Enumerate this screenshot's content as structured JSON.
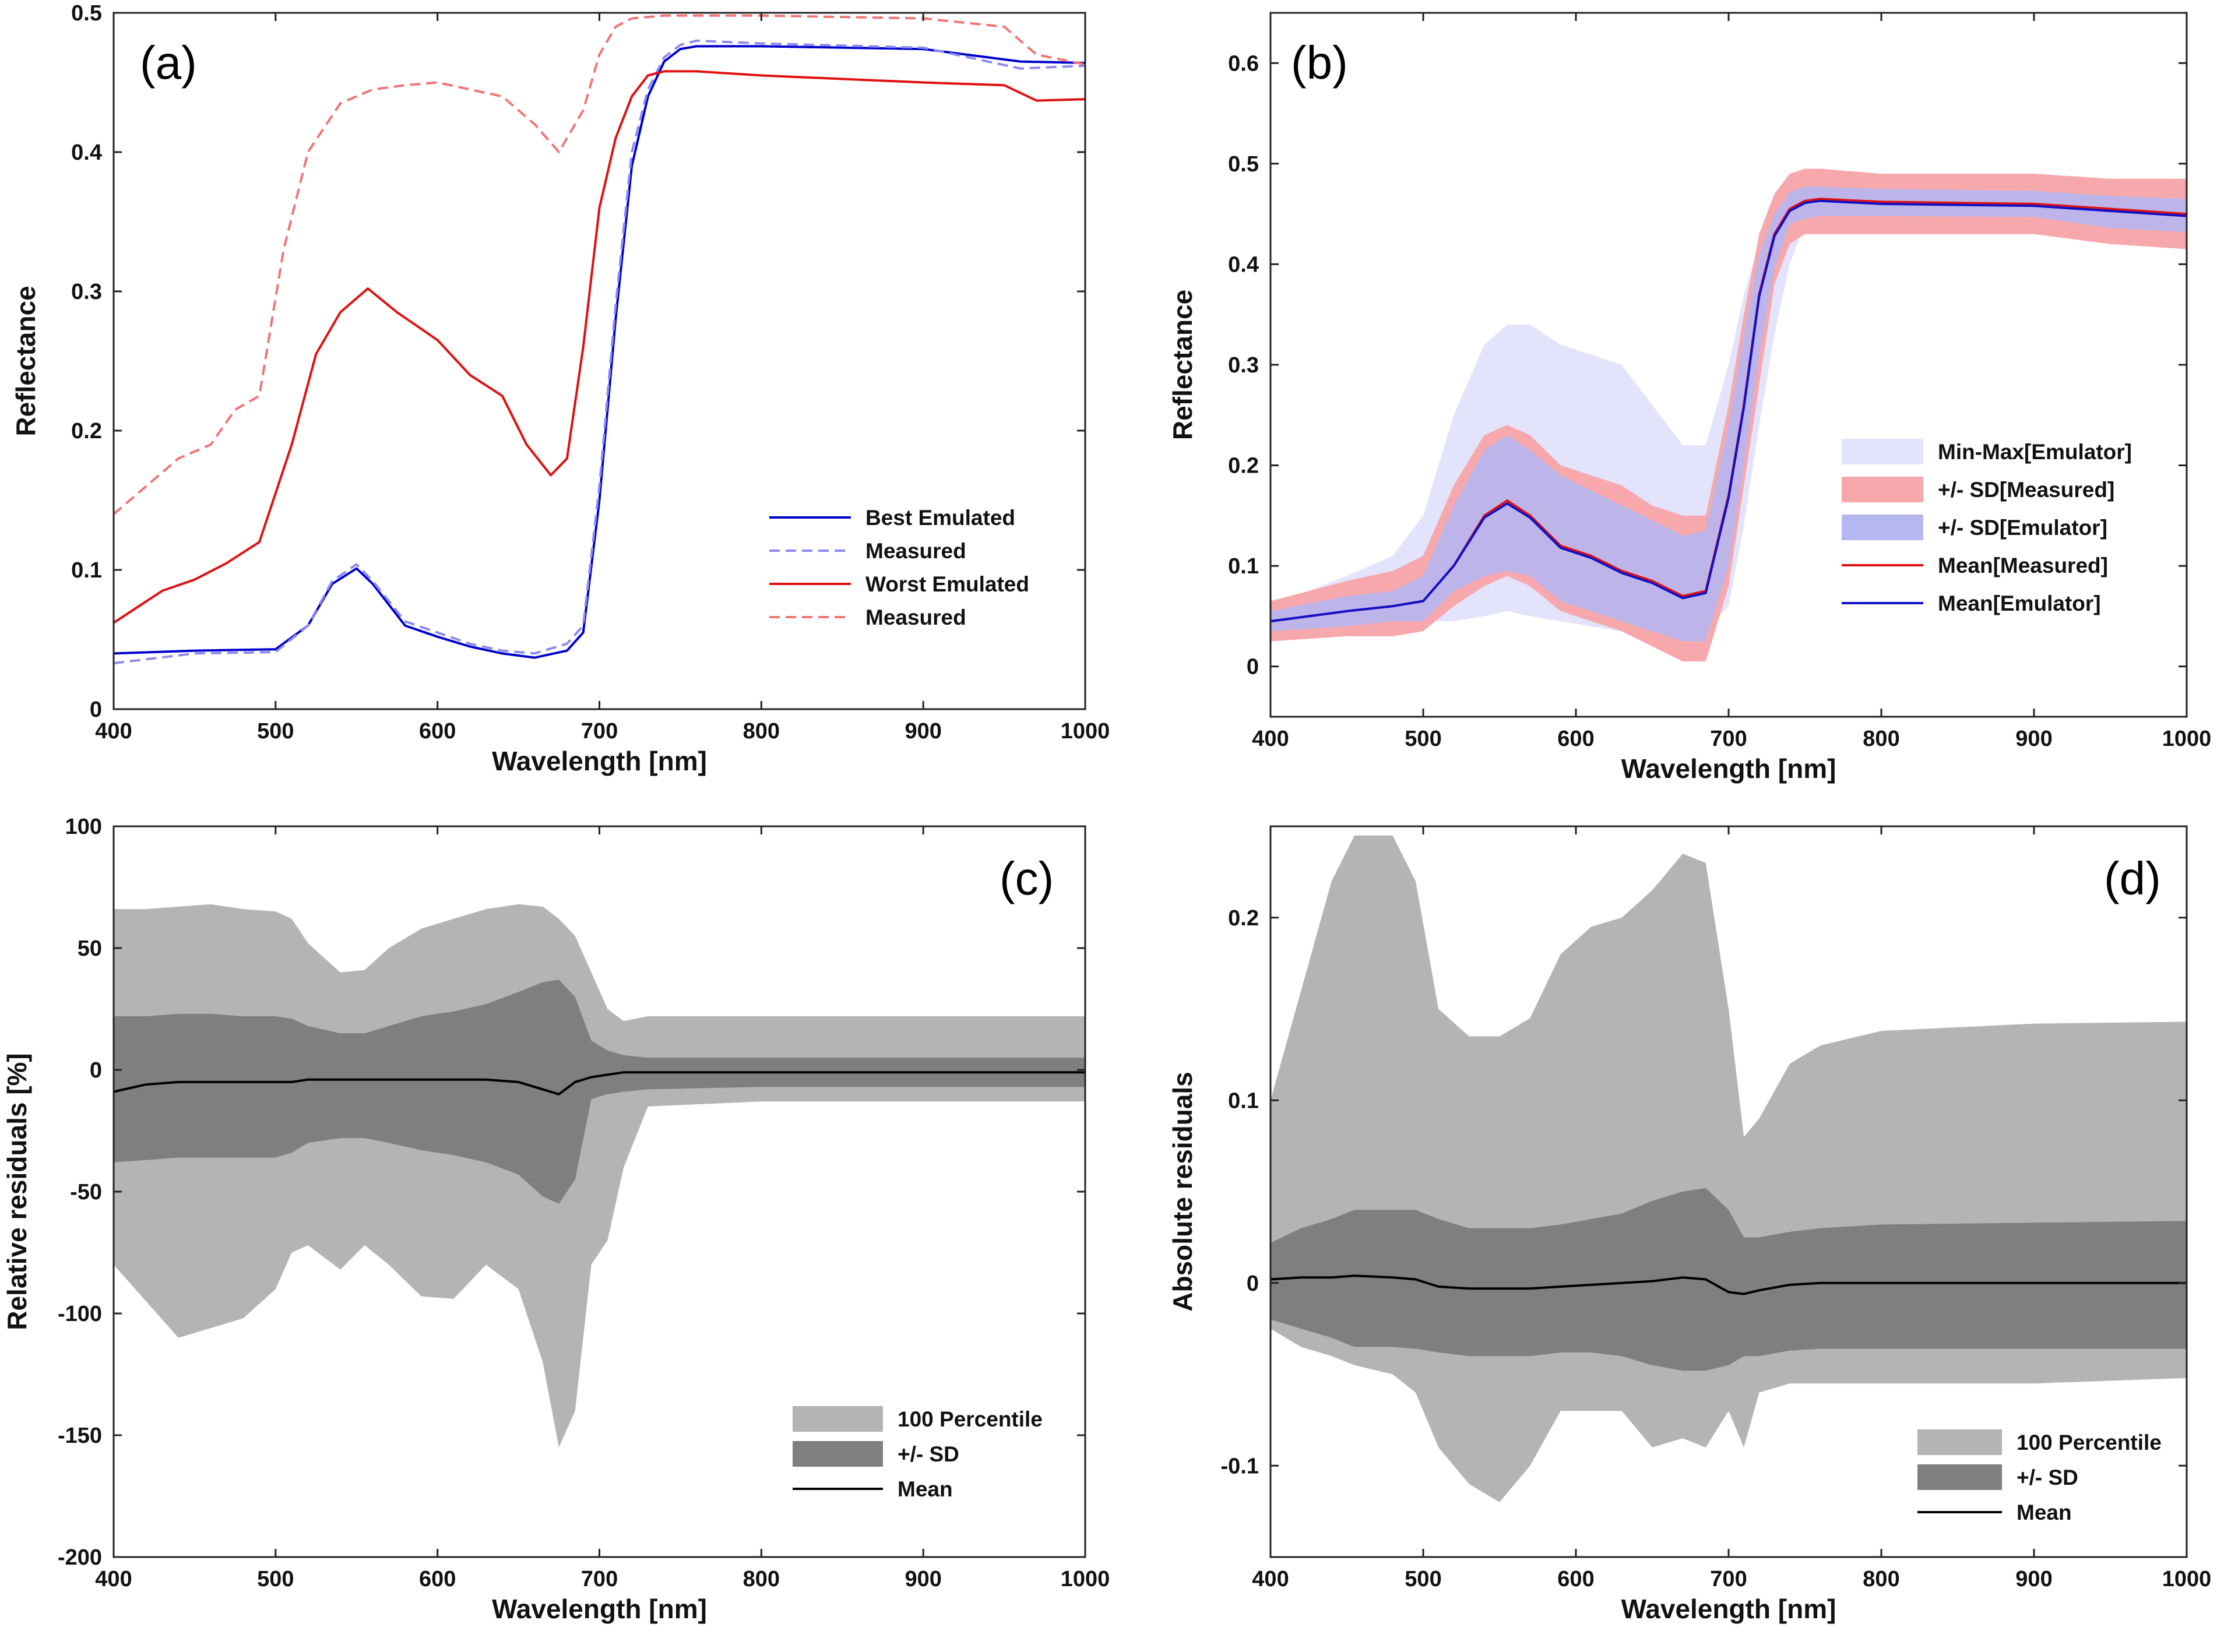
{
  "chart_data": [
    {
      "panel": "a",
      "type": "line",
      "panel_label": "(a)",
      "xlabel": "Wavelength [nm]",
      "ylabel": "Reflectance",
      "xlim": [
        400,
        1000
      ],
      "ylim": [
        0,
        0.5
      ],
      "xticks": [
        400,
        500,
        600,
        700,
        800,
        900,
        1000
      ],
      "yticks": [
        0,
        0.1,
        0.2,
        0.3,
        0.4,
        0.5
      ],
      "ytick_labels": [
        "0",
        "0.1",
        "0.2",
        "0.3",
        "0.4",
        "0.5"
      ],
      "legend_position": "lower-right",
      "series": [
        {
          "name": "Best Emulated",
          "color": "#0000cc",
          "style": "solid",
          "x": [
            400,
            450,
            500,
            520,
            535,
            550,
            560,
            580,
            600,
            620,
            640,
            660,
            680,
            690,
            700,
            710,
            720,
            730,
            740,
            750,
            760,
            800,
            900,
            960,
            1000
          ],
          "y": [
            0.04,
            0.042,
            0.043,
            0.06,
            0.09,
            0.101,
            0.09,
            0.06,
            0.052,
            0.045,
            0.04,
            0.037,
            0.042,
            0.055,
            0.15,
            0.28,
            0.39,
            0.44,
            0.465,
            0.474,
            0.476,
            0.476,
            0.474,
            0.465,
            0.464
          ]
        },
        {
          "name": "Measured",
          "color": "#8a8af0",
          "style": "dashed",
          "x": [
            400,
            450,
            500,
            520,
            535,
            550,
            560,
            580,
            600,
            620,
            640,
            660,
            680,
            690,
            700,
            710,
            720,
            730,
            740,
            750,
            760,
            800,
            900,
            960,
            1000
          ],
          "y": [
            0.033,
            0.04,
            0.041,
            0.06,
            0.092,
            0.104,
            0.092,
            0.063,
            0.055,
            0.047,
            0.042,
            0.04,
            0.047,
            0.06,
            0.16,
            0.29,
            0.4,
            0.445,
            0.468,
            0.477,
            0.48,
            0.478,
            0.475,
            0.46,
            0.462
          ]
        },
        {
          "name": "Worst Emulated",
          "color": "#e01010",
          "style": "solid",
          "x": [
            400,
            430,
            450,
            470,
            490,
            510,
            525,
            540,
            557,
            575,
            600,
            620,
            640,
            655,
            670,
            680,
            690,
            700,
            710,
            720,
            730,
            740,
            760,
            800,
            900,
            950,
            970,
            1000
          ],
          "y": [
            0.062,
            0.085,
            0.093,
            0.105,
            0.12,
            0.19,
            0.255,
            0.285,
            0.302,
            0.285,
            0.265,
            0.24,
            0.225,
            0.19,
            0.168,
            0.18,
            0.26,
            0.36,
            0.41,
            0.44,
            0.455,
            0.458,
            0.458,
            0.455,
            0.45,
            0.448,
            0.437,
            0.438
          ]
        },
        {
          "name": "Measured",
          "color": "#f07575",
          "style": "dashed",
          "x": [
            400,
            420,
            440,
            460,
            475,
            490,
            505,
            520,
            540,
            560,
            580,
            600,
            620,
            640,
            660,
            675,
            690,
            700,
            710,
            720,
            740,
            800,
            900,
            950,
            970,
            1000
          ],
          "y": [
            0.14,
            0.16,
            0.18,
            0.19,
            0.215,
            0.225,
            0.33,
            0.4,
            0.435,
            0.445,
            0.448,
            0.45,
            0.445,
            0.44,
            0.42,
            0.4,
            0.43,
            0.47,
            0.49,
            0.496,
            0.498,
            0.498,
            0.496,
            0.49,
            0.47,
            0.463
          ]
        }
      ]
    },
    {
      "panel": "b",
      "type": "area",
      "panel_label": "(b)",
      "xlabel": "Wavelength [nm]",
      "ylabel": "Reflectance",
      "xlim": [
        400,
        1000
      ],
      "ylim": [
        -0.05,
        0.65
      ],
      "xticks": [
        400,
        500,
        600,
        700,
        800,
        900,
        1000
      ],
      "yticks": [
        0,
        0.1,
        0.2,
        0.3,
        0.4,
        0.5,
        0.6
      ],
      "ytick_labels": [
        "0",
        "0.1",
        "0.2",
        "0.3",
        "0.4",
        "0.5",
        "0.6"
      ],
      "legend_position": "lower-right",
      "x": [
        400,
        450,
        480,
        500,
        520,
        540,
        555,
        570,
        590,
        610,
        630,
        650,
        670,
        685,
        700,
        710,
        720,
        730,
        740,
        750,
        760,
        800,
        900,
        950,
        1000
      ],
      "bands": [
        {
          "name": "Min-Max[Emulator]",
          "color": "#e3e3fb",
          "upper": [
            0.06,
            0.09,
            0.11,
            0.15,
            0.25,
            0.32,
            0.34,
            0.34,
            0.32,
            0.31,
            0.3,
            0.26,
            0.22,
            0.22,
            0.3,
            0.37,
            0.42,
            0.45,
            0.46,
            0.465,
            0.468,
            0.466,
            0.462,
            0.46,
            0.455
          ],
          "lower": [
            0.04,
            0.045,
            0.045,
            0.045,
            0.045,
            0.05,
            0.055,
            0.05,
            0.045,
            0.04,
            0.035,
            0.035,
            0.03,
            0.035,
            0.06,
            0.14,
            0.24,
            0.33,
            0.4,
            0.44,
            0.455,
            0.455,
            0.455,
            0.45,
            0.44
          ]
        },
        {
          "name": "+/- SD[Measured]",
          "color": "#f7a8ac",
          "upper": [
            0.065,
            0.085,
            0.095,
            0.11,
            0.18,
            0.23,
            0.24,
            0.23,
            0.2,
            0.19,
            0.18,
            0.16,
            0.15,
            0.15,
            0.26,
            0.35,
            0.43,
            0.47,
            0.49,
            0.495,
            0.495,
            0.49,
            0.49,
            0.485,
            0.485
          ]
        },
        {
          "name": "+/- SD[Emulator]",
          "color": "#b6b6f0",
          "upper": [
            0.055,
            0.07,
            0.075,
            0.09,
            0.16,
            0.215,
            0.23,
            0.215,
            0.19,
            0.175,
            0.16,
            0.145,
            0.13,
            0.135,
            0.24,
            0.33,
            0.41,
            0.45,
            0.472,
            0.477,
            0.477,
            0.475,
            0.473,
            0.468,
            0.465
          ],
          "lower": [
            0.035,
            0.04,
            0.045,
            0.045,
            0.075,
            0.09,
            0.095,
            0.09,
            0.065,
            0.055,
            0.045,
            0.035,
            0.025,
            0.025,
            0.1,
            0.2,
            0.31,
            0.395,
            0.44,
            0.445,
            0.448,
            0.448,
            0.447,
            0.436,
            0.432
          ]
        },
        {
          "name": "+/- SD[Measured] lower",
          "color": "#f7a8ac",
          "lower": [
            0.025,
            0.03,
            0.03,
            0.035,
            0.06,
            0.08,
            0.09,
            0.08,
            0.055,
            0.045,
            0.035,
            0.02,
            0.005,
            0.005,
            0.08,
            0.18,
            0.28,
            0.38,
            0.42,
            0.43,
            0.43,
            0.43,
            0.43,
            0.42,
            0.415
          ]
        }
      ],
      "series": [
        {
          "name": "Mean[Measured]",
          "color": "#e01010",
          "y": [
            0.045,
            0.055,
            0.06,
            0.065,
            0.1,
            0.15,
            0.165,
            0.15,
            0.12,
            0.11,
            0.095,
            0.085,
            0.07,
            0.075,
            0.17,
            0.26,
            0.37,
            0.43,
            0.455,
            0.463,
            0.465,
            0.462,
            0.46,
            0.455,
            0.45
          ]
        },
        {
          "name": "Mean[Emulator]",
          "color": "#1010c8",
          "y": [
            0.045,
            0.055,
            0.06,
            0.065,
            0.1,
            0.148,
            0.162,
            0.148,
            0.118,
            0.108,
            0.093,
            0.083,
            0.068,
            0.073,
            0.168,
            0.258,
            0.368,
            0.428,
            0.453,
            0.461,
            0.463,
            0.46,
            0.458,
            0.453,
            0.448
          ]
        }
      ]
    },
    {
      "panel": "c",
      "type": "area",
      "panel_label": "(c)",
      "xlabel": "Wavelength [nm]",
      "ylabel": "Relative residuals [%]",
      "xlim": [
        400,
        1000
      ],
      "ylim": [
        -200,
        100
      ],
      "xticks": [
        400,
        500,
        600,
        700,
        800,
        900,
        1000
      ],
      "yticks": [
        -200,
        -150,
        -100,
        -50,
        0,
        50,
        100
      ],
      "ytick_labels": [
        "-200",
        "-150",
        "-100",
        "-50",
        "0",
        "50",
        "100"
      ],
      "legend_position": "lower-right",
      "x": [
        400,
        420,
        440,
        460,
        480,
        500,
        510,
        520,
        540,
        555,
        570,
        590,
        610,
        630,
        650,
        665,
        675,
        685,
        695,
        705,
        715,
        730,
        800,
        900,
        1000
      ],
      "bands": [
        {
          "name": "100 Percentile",
          "color": "#b4b4b4",
          "upper": [
            66,
            66,
            67,
            68,
            66,
            65,
            62,
            52,
            40,
            41,
            50,
            58,
            62,
            66,
            68,
            67,
            62,
            55,
            40,
            25,
            20,
            22,
            22,
            22,
            22
          ],
          "lower": [
            -80,
            -95,
            -110,
            -106,
            -102,
            -90,
            -75,
            -72,
            -82,
            -72,
            -80,
            -93,
            -94,
            -80,
            -90,
            -120,
            -155,
            -140,
            -80,
            -70,
            -40,
            -15,
            -13,
            -13,
            -13
          ]
        },
        {
          "name": "+/- SD",
          "color": "#7f7f7f",
          "upper": [
            22,
            22,
            23,
            23,
            22,
            22,
            21,
            18,
            15,
            15,
            18,
            22,
            24,
            27,
            32,
            36,
            37,
            30,
            12,
            8,
            6,
            5,
            5,
            5,
            5
          ],
          "lower": [
            -38,
            -37,
            -36,
            -36,
            -36,
            -36,
            -34,
            -30,
            -28,
            -28,
            -30,
            -33,
            -35,
            -38,
            -43,
            -52,
            -55,
            -45,
            -12,
            -10,
            -9,
            -8,
            -7,
            -7,
            -7
          ]
        }
      ],
      "series": [
        {
          "name": "Mean",
          "color": "#000000",
          "y": [
            -9,
            -6,
            -5,
            -5,
            -5,
            -5,
            -5,
            -4,
            -4,
            -4,
            -4,
            -4,
            -4,
            -4,
            -5,
            -8,
            -10,
            -5,
            -3,
            -2,
            -1,
            -1,
            -1,
            -1,
            -1
          ]
        }
      ]
    },
    {
      "panel": "d",
      "type": "area",
      "panel_label": "(d)",
      "xlabel": "Wavelength [nm]",
      "ylabel": "Absolute residuals",
      "xlim": [
        400,
        1000
      ],
      "ylim": [
        -0.15,
        0.25
      ],
      "xticks": [
        400,
        500,
        600,
        700,
        800,
        900,
        1000
      ],
      "yticks": [
        -0.1,
        0,
        0.1,
        0.2
      ],
      "ytick_labels": [
        "-0.1",
        "0",
        "0.1",
        "0.2"
      ],
      "legend_position": "lower-right",
      "x": [
        400,
        420,
        440,
        455,
        480,
        495,
        510,
        530,
        550,
        570,
        590,
        610,
        630,
        650,
        670,
        685,
        700,
        710,
        720,
        740,
        760,
        800,
        900,
        1000
      ],
      "bands": [
        {
          "name": "100 Percentile",
          "color": "#b4b4b4",
          "upper": [
            0.1,
            0.16,
            0.22,
            0.245,
            0.245,
            0.22,
            0.15,
            0.135,
            0.135,
            0.145,
            0.18,
            0.195,
            0.2,
            0.215,
            0.235,
            0.23,
            0.15,
            0.08,
            0.09,
            0.12,
            0.13,
            0.138,
            0.142,
            0.143
          ],
          "lower": [
            -0.025,
            -0.035,
            -0.04,
            -0.045,
            -0.05,
            -0.06,
            -0.09,
            -0.11,
            -0.12,
            -0.1,
            -0.07,
            -0.07,
            -0.07,
            -0.09,
            -0.085,
            -0.09,
            -0.07,
            -0.09,
            -0.06,
            -0.055,
            -0.055,
            -0.055,
            -0.055,
            -0.052
          ]
        },
        {
          "name": "+/- SD",
          "color": "#7f7f7f",
          "upper": [
            0.022,
            0.03,
            0.035,
            0.04,
            0.04,
            0.04,
            0.035,
            0.03,
            0.03,
            0.03,
            0.032,
            0.035,
            0.038,
            0.045,
            0.05,
            0.052,
            0.04,
            0.025,
            0.025,
            0.028,
            0.03,
            0.032,
            0.033,
            0.034
          ],
          "lower": [
            -0.02,
            -0.025,
            -0.03,
            -0.035,
            -0.035,
            -0.036,
            -0.038,
            -0.04,
            -0.04,
            -0.04,
            -0.038,
            -0.038,
            -0.04,
            -0.045,
            -0.048,
            -0.048,
            -0.045,
            -0.04,
            -0.04,
            -0.037,
            -0.036,
            -0.036,
            -0.036,
            -0.036
          ]
        }
      ],
      "series": [
        {
          "name": "Mean",
          "color": "#000000",
          "y": [
            0.002,
            0.003,
            0.003,
            0.004,
            0.003,
            0.002,
            -0.002,
            -0.003,
            -0.003,
            -0.003,
            -0.002,
            -0.001,
            0,
            0.001,
            0.003,
            0.002,
            -0.005,
            -0.006,
            -0.004,
            -0.001,
            0,
            0,
            0,
            0
          ]
        }
      ]
    }
  ]
}
